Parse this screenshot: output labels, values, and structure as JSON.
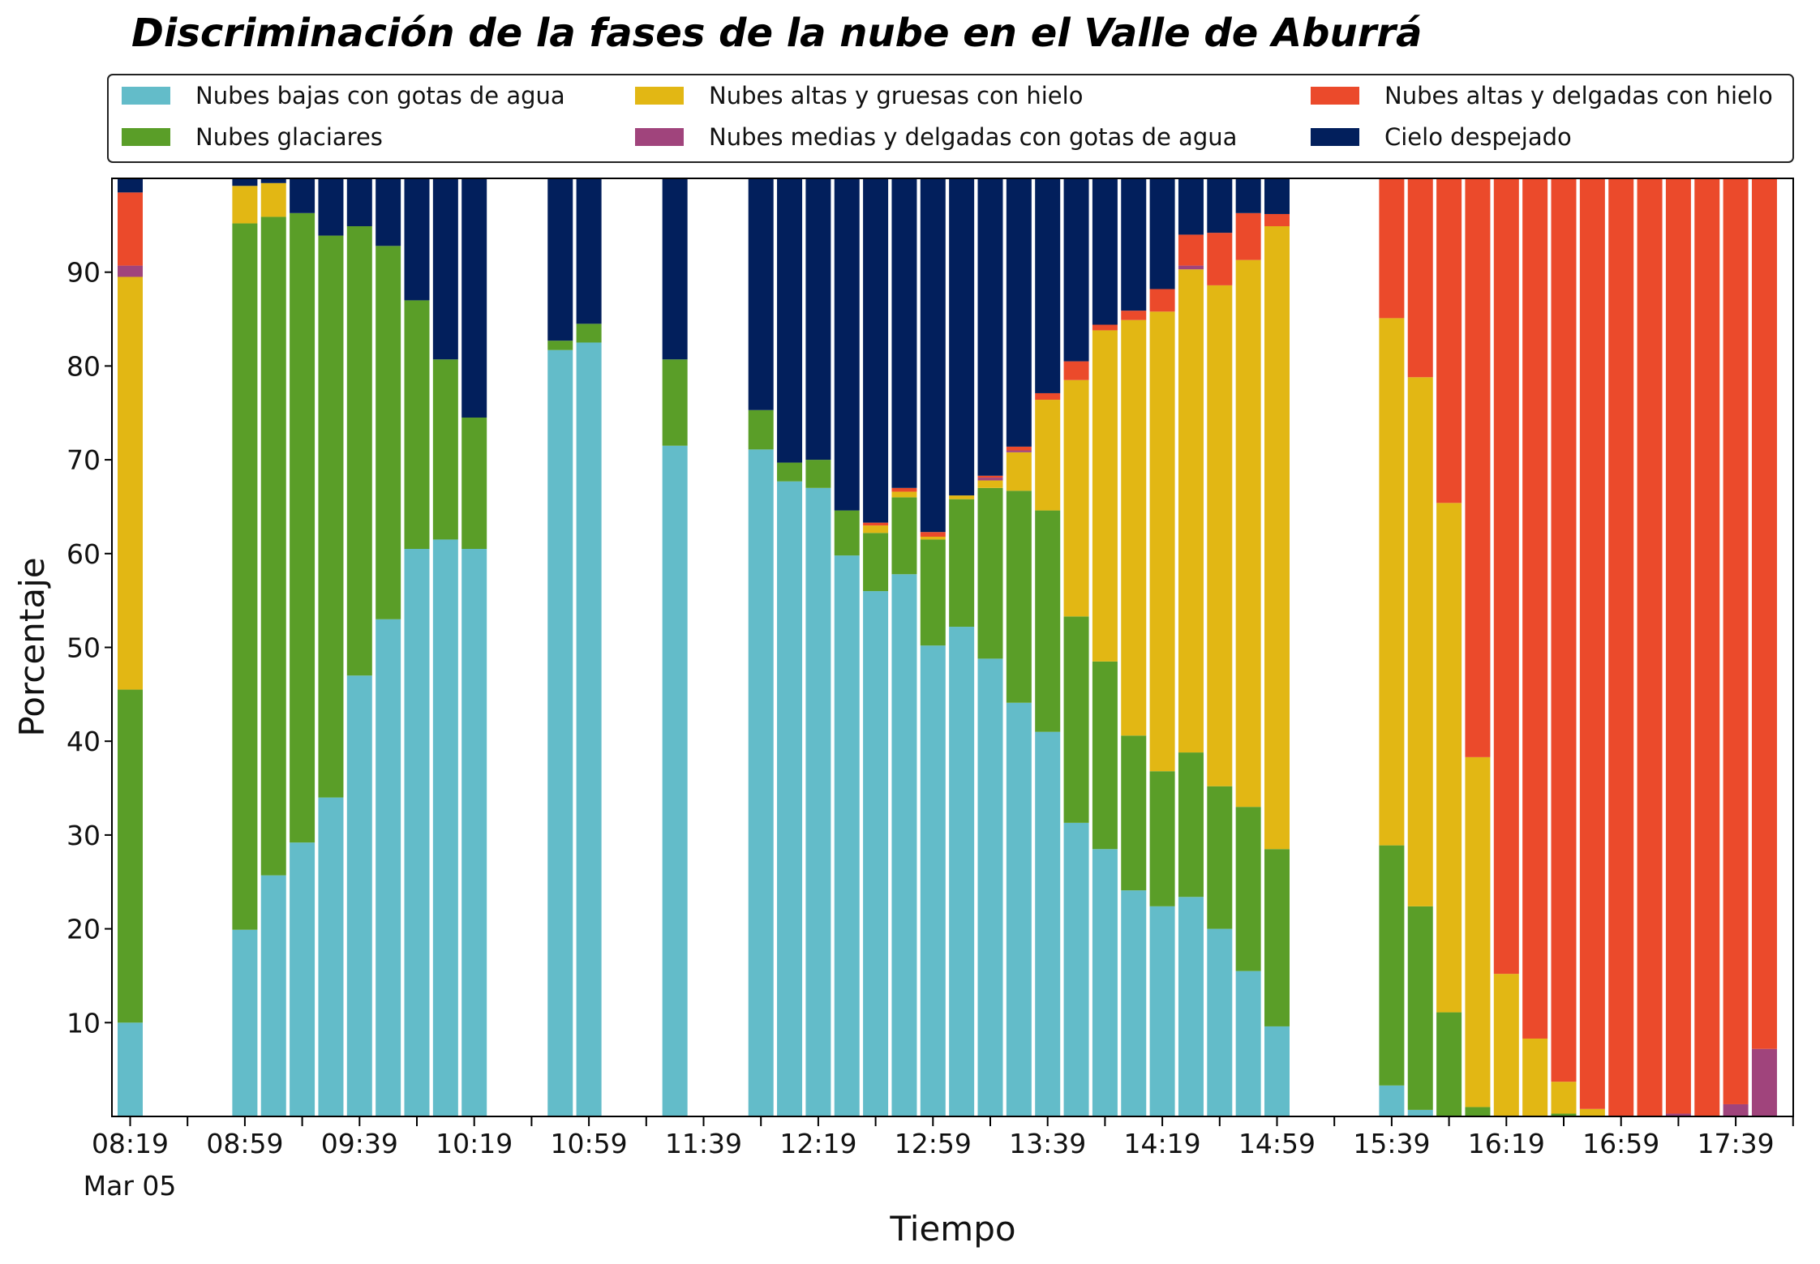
{
  "chart_data": {
    "type": "bar",
    "stacked": true,
    "title": "Discriminación de la fases de la nube en el Valle de Aburrá",
    "xlabel": "Tiempo",
    "ylabel": "Porcentaje",
    "ylim": [
      0,
      100
    ],
    "yticks": [
      10,
      20,
      30,
      40,
      50,
      60,
      70,
      80,
      90
    ],
    "x_tick_labels": [
      "08:19",
      "08:59",
      "09:39",
      "10:19",
      "10:59",
      "11:39",
      "12:19",
      "12:59",
      "13:39",
      "14:19",
      "14:59",
      "15:39",
      "16:19",
      "16:59",
      "17:39"
    ],
    "x_date_label": "Mar 05",
    "x_start": "08:19",
    "x_step_minutes": 10,
    "grid": false,
    "legend_position": "top",
    "series": [
      {
        "name": "Nubes bajas con gotas de agua",
        "color": "#63BCC9",
        "values": [
          10,
          null,
          null,
          null,
          19.9,
          25.7,
          29.2,
          34,
          47,
          53,
          60.5,
          61.5,
          60.5,
          null,
          null,
          81.7,
          82.5,
          null,
          null,
          71.5,
          null,
          null,
          71.1,
          67.7,
          67,
          59.8,
          56,
          57.8,
          50.2,
          52.2,
          48.8,
          44.1,
          41,
          31.3,
          28.5,
          24.1,
          22.4,
          23.4,
          20,
          15.5,
          9.6,
          null,
          null,
          null,
          3.3,
          0.7,
          0,
          0,
          0,
          0,
          0,
          0,
          0,
          0,
          0,
          0,
          0,
          0
        ]
      },
      {
        "name": "Nubes glaciares",
        "color": "#5A9E28",
        "values": [
          35.5,
          null,
          null,
          null,
          75.3,
          70.2,
          67.1,
          59.9,
          47.9,
          39.8,
          26.5,
          19.2,
          14,
          null,
          null,
          1,
          2,
          null,
          null,
          9.2,
          null,
          null,
          4.2,
          2,
          3,
          4.8,
          6.2,
          8.2,
          11.3,
          13.6,
          18.2,
          22.6,
          23.6,
          22,
          20,
          16.5,
          14.4,
          15.4,
          15.2,
          17.5,
          18.9,
          null,
          null,
          null,
          25.6,
          21.7,
          11.1,
          1,
          0,
          0,
          0.3,
          0,
          0,
          0,
          0,
          0,
          0,
          0
        ]
      },
      {
        "name": "Nubes altas y gruesas con hielo",
        "color": "#E2B714",
        "values": [
          44,
          null,
          null,
          null,
          4,
          3.6,
          0,
          0,
          0,
          0,
          0,
          0,
          0,
          null,
          null,
          0,
          0,
          null,
          null,
          0,
          null,
          null,
          0,
          0,
          0,
          0,
          0.8,
          0.6,
          0.3,
          0.4,
          0.8,
          4.1,
          11.8,
          25.2,
          35.3,
          44.3,
          49,
          51.5,
          53.4,
          58.3,
          66.4,
          null,
          null,
          null,
          56.2,
          56.4,
          54.3,
          37.3,
          15.2,
          8.3,
          3.4,
          0.8,
          0,
          0,
          0,
          0,
          0,
          0
        ]
      },
      {
        "name": "Nubes medias y delgadas con gotas de agua",
        "color": "#A0447C",
        "values": [
          1.2,
          null,
          null,
          null,
          0,
          0,
          0,
          0,
          0,
          0,
          0,
          0,
          0,
          null,
          null,
          0,
          0,
          null,
          null,
          0,
          null,
          null,
          0,
          0,
          0,
          0,
          0,
          0,
          0,
          0,
          0.3,
          0.2,
          0,
          0,
          0,
          0,
          0,
          0.4,
          0,
          0,
          0,
          null,
          null,
          null,
          0,
          0,
          0,
          0,
          0,
          0,
          0,
          0,
          0,
          0,
          0.3,
          0,
          1.3,
          7.2
        ]
      },
      {
        "name": "Nubes altas y delgadas con hielo",
        "color": "#EB4A2B",
        "values": [
          7.8,
          null,
          null,
          null,
          0,
          0,
          0,
          0,
          0,
          0,
          0,
          0,
          0,
          null,
          null,
          0,
          0,
          null,
          null,
          0,
          null,
          null,
          0,
          0,
          0,
          0,
          0.3,
          0.4,
          0.5,
          0,
          0.2,
          0.4,
          0.7,
          2,
          0.6,
          1,
          2.4,
          3.3,
          5.6,
          5,
          1.3,
          null,
          null,
          null,
          14.9,
          21.2,
          34.6,
          61.7,
          84.8,
          91.7,
          96.3,
          99.2,
          100,
          100,
          99.7,
          100,
          98.7,
          92.8
        ]
      },
      {
        "name": "Cielo despejado",
        "color": "#021F5C",
        "values": [
          1.5,
          null,
          null,
          null,
          0.8,
          0.5,
          3.7,
          6.1,
          5.1,
          7.2,
          13,
          19.3,
          25.5,
          null,
          null,
          17.3,
          15.5,
          null,
          null,
          19.3,
          null,
          null,
          24.7,
          30.3,
          30,
          35.4,
          36.7,
          33,
          37.7,
          33.8,
          31.7,
          28.6,
          22.9,
          19.5,
          15.6,
          14.1,
          11.8,
          6,
          5.8,
          3.7,
          3.8,
          null,
          null,
          null,
          0,
          0,
          0,
          0,
          0,
          0,
          0,
          0,
          0,
          0,
          0,
          0,
          0,
          0
        ]
      }
    ]
  }
}
